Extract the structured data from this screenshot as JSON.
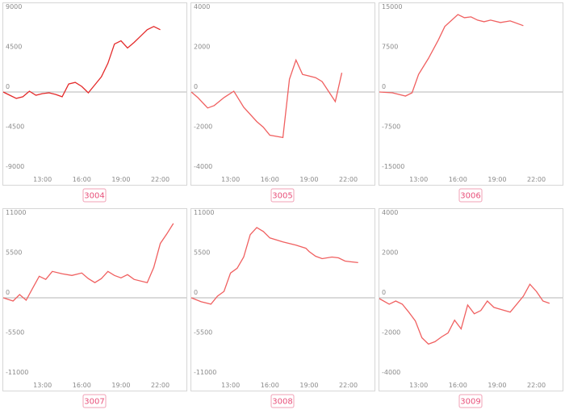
{
  "chart_data": [
    {
      "type": "line",
      "title": "3004",
      "color": "#e42a2a",
      "x": [
        10,
        10.5,
        11,
        11.5,
        12,
        12.5,
        13,
        13.5,
        14,
        14.5,
        15,
        15.5,
        16,
        16.5,
        17,
        17.5,
        18,
        18.5,
        19,
        19.5,
        20,
        20.5,
        21,
        21.5,
        22
      ],
      "values": [
        0,
        -360,
        -720,
        -540,
        90,
        -360,
        -180,
        -90,
        -270,
        -540,
        900,
        1080,
        630,
        -90,
        810,
        1710,
        3240,
        5400,
        5760,
        4950,
        5580,
        6300,
        7020,
        7380,
        7020
      ],
      "xlim": [
        10,
        24
      ],
      "xticks": [
        {
          "value": 13,
          "label": "13:00"
        },
        {
          "value": 16,
          "label": "16:00"
        },
        {
          "value": 19,
          "label": "19:00"
        },
        {
          "value": 22,
          "label": "22:00"
        }
      ],
      "ylim": [
        -9000,
        9000
      ],
      "yticks": [
        -9000,
        -4500,
        0,
        4500,
        9000
      ]
    },
    {
      "type": "line",
      "title": "3005",
      "color": "#f06060",
      "x": [
        10,
        10.5,
        11.25,
        11.75,
        12.5,
        13.25,
        14,
        15,
        15.5,
        16,
        17,
        17.5,
        18,
        18.5,
        19.5,
        20,
        21,
        21.5
      ],
      "values": [
        0,
        -280,
        -800,
        -680,
        -280,
        40,
        -760,
        -1480,
        -1760,
        -2160,
        -2280,
        640,
        1600,
        880,
        720,
        520,
        -480,
        960
      ],
      "xlim": [
        10,
        24
      ],
      "xticks": [
        {
          "value": 13,
          "label": "13:00"
        },
        {
          "value": 16,
          "label": "16:00"
        },
        {
          "value": 19,
          "label": "19:00"
        },
        {
          "value": 22,
          "label": "22:00"
        }
      ],
      "ylim": [
        -4000,
        4000
      ],
      "yticks": [
        -4000,
        -2000,
        0,
        2000,
        4000
      ]
    },
    {
      "type": "line",
      "title": "3006",
      "color": "#f06060",
      "x": [
        10,
        11,
        12,
        12.5,
        13,
        13.75,
        14.5,
        15,
        16,
        16.5,
        17,
        17.5,
        18,
        18.5,
        19.25,
        20,
        21
      ],
      "values": [
        0,
        -150,
        -750,
        -150,
        3300,
        6300,
        9750,
        12300,
        14550,
        13950,
        14100,
        13500,
        13200,
        13500,
        13050,
        13350,
        12450
      ],
      "xlim": [
        10,
        24
      ],
      "xticks": [
        {
          "value": 13,
          "label": "13:00"
        },
        {
          "value": 16,
          "label": "16:00"
        },
        {
          "value": 19,
          "label": "19:00"
        },
        {
          "value": 22,
          "label": "22:00"
        }
      ],
      "ylim": [
        -15000,
        15000
      ],
      "yticks": [
        -15000,
        -7500,
        0,
        7500,
        15000
      ]
    },
    {
      "type": "line",
      "title": "3007",
      "color": "#f06060",
      "x": [
        10,
        10.75,
        11.25,
        11.75,
        12.25,
        12.75,
        13.25,
        13.75,
        14.5,
        15.25,
        16,
        16.5,
        17,
        17.5,
        18,
        18.5,
        19,
        19.5,
        20,
        21,
        21.5,
        22,
        22.5,
        23
      ],
      "values": [
        0,
        -440,
        440,
        -330,
        1320,
        2970,
        2530,
        3630,
        3300,
        3080,
        3410,
        2640,
        2090,
        2640,
        3630,
        3080,
        2750,
        3190,
        2530,
        2090,
        4180,
        7480,
        8800,
        10230
      ],
      "xlim": [
        10,
        24
      ],
      "xticks": [
        {
          "value": 13,
          "label": "13:00"
        },
        {
          "value": 16,
          "label": "16:00"
        },
        {
          "value": 19,
          "label": "19:00"
        },
        {
          "value": 22,
          "label": "22:00"
        }
      ],
      "ylim": [
        -11000,
        11000
      ],
      "yticks": [
        -11000,
        -5500,
        0,
        5500,
        11000
      ]
    },
    {
      "type": "line",
      "title": "3008",
      "color": "#f06060",
      "x": [
        10,
        10.75,
        11.5,
        12,
        12.5,
        13,
        13.5,
        14,
        14.5,
        15,
        15.5,
        16,
        17,
        18,
        18.75,
        19,
        19.5,
        20,
        20.75,
        21.25,
        21.75,
        22.25,
        22.75
      ],
      "values": [
        0,
        -550,
        -880,
        220,
        880,
        3410,
        4070,
        5610,
        8690,
        9680,
        9130,
        8250,
        7700,
        7260,
        6820,
        6380,
        5720,
        5390,
        5610,
        5500,
        5060,
        4950,
        4840
      ],
      "xlim": [
        10,
        24
      ],
      "xticks": [
        {
          "value": 13,
          "label": "13:00"
        },
        {
          "value": 16,
          "label": "16:00"
        },
        {
          "value": 19,
          "label": "19:00"
        },
        {
          "value": 22,
          "label": "22:00"
        }
      ],
      "ylim": [
        -11000,
        11000
      ],
      "yticks": [
        -11000,
        -5500,
        0,
        5500,
        11000
      ]
    },
    {
      "type": "line",
      "title": "3009",
      "color": "#f06060",
      "x": [
        10,
        10.75,
        11.25,
        11.75,
        12.25,
        12.75,
        13.25,
        13.75,
        14.25,
        14.75,
        15.25,
        15.75,
        16.25,
        16.75,
        17.25,
        17.75,
        18.25,
        18.75,
        20,
        21,
        21.5,
        22,
        22.5,
        23
      ],
      "values": [
        -40,
        -320,
        -160,
        -320,
        -720,
        -1160,
        -2000,
        -2320,
        -2200,
        -1960,
        -1760,
        -1120,
        -1560,
        -360,
        -800,
        -640,
        -160,
        -480,
        -720,
        80,
        680,
        320,
        -160,
        -280
      ],
      "xlim": [
        10,
        24
      ],
      "xticks": [
        {
          "value": 13,
          "label": "13:00"
        },
        {
          "value": 16,
          "label": "16:00"
        },
        {
          "value": 19,
          "label": "19:00"
        },
        {
          "value": 22,
          "label": "22:00"
        }
      ],
      "ylim": [
        -4000,
        4000
      ],
      "yticks": [
        -4000,
        -2000,
        0,
        2000,
        4000
      ]
    }
  ]
}
